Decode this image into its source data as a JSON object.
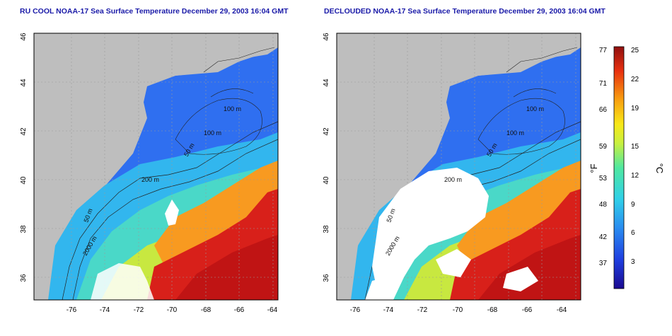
{
  "panels": [
    {
      "title": "RU COOL NOAA-17 Sea Surface Temperature December 29, 2003 16:04 GMT"
    },
    {
      "title": "DECLOUDED NOAA-17 Sea Surface Temperature December 29, 2003 16:04 GMT"
    }
  ],
  "axes": {
    "x_ticks": [
      "-76",
      "-74",
      "-72",
      "-70",
      "-68",
      "-66",
      "-64"
    ],
    "y_ticks": [
      "46",
      "44",
      "42",
      "40",
      "38",
      "36"
    ]
  },
  "contour_labels": [
    "100 m",
    "100 m",
    "50 m",
    "200 m",
    "50 m",
    "2000 m"
  ],
  "colorbar": {
    "left_unit": "°F",
    "right_unit": "°C",
    "f_ticks": [
      "77",
      "71",
      "66",
      "59",
      "53",
      "48",
      "42",
      "37"
    ],
    "c_ticks": [
      "25",
      "22",
      "19",
      "15",
      "12",
      "9",
      "6",
      "3"
    ]
  },
  "colors": {
    "land": "#bebebe",
    "title": "#1a1aa8",
    "cold": "#1a4fd8",
    "warm": "#cc1010"
  }
}
